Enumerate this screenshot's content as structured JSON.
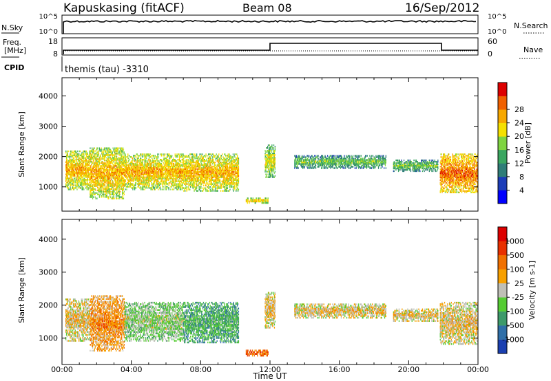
{
  "header": {
    "station": "Kapuskasing (fitACF)",
    "beam": "Beam 08",
    "date": "16/Sep/2012"
  },
  "top_panels": {
    "nsky_label": "N.Sky",
    "nsearch_label": "N.Search",
    "nsky_ticks": [
      "10^5",
      "10^0"
    ],
    "nsearch_ticks": [
      "10^5",
      "10^0"
    ],
    "freq_label": "Freq.",
    "freq_unit": "[MHz]",
    "freq_ticks": [
      "18",
      "8"
    ],
    "nave_label": "Nave",
    "nave_ticks": [
      "60",
      "0"
    ],
    "cpid_label": "CPID",
    "cpid_value": "themis (tau) -3310"
  },
  "chart_data": [
    {
      "type": "heatmap",
      "title": "Power",
      "ylabel": "Slant Range [km]",
      "xlim": [
        0,
        24
      ],
      "ylim": [
        200,
        4600
      ],
      "yticks": [
        1000,
        2000,
        3000,
        4000
      ],
      "colorbar": {
        "label": "Power [dB]",
        "ticks": [
          "4",
          "8",
          "12",
          "16",
          "20",
          "24",
          "28"
        ],
        "colors": [
          "#0000ff",
          "#1c3db8",
          "#2f7d78",
          "#3aa660",
          "#7fd441",
          "#f5e000",
          "#f7a800",
          "#f06000",
          "#dd0000"
        ]
      },
      "echo_regions": [
        {
          "t0": 0.2,
          "t1": 1.6,
          "r0": 900,
          "r1": 2200,
          "level": 4
        },
        {
          "t0": 1.6,
          "t1": 3.6,
          "r0": 600,
          "r1": 2300,
          "level": 4
        },
        {
          "t0": 3.6,
          "t1": 7.0,
          "r0": 900,
          "r1": 2100,
          "level": 4
        },
        {
          "t0": 7.0,
          "t1": 10.2,
          "r0": 850,
          "r1": 2100,
          "level": 4
        },
        {
          "t0": 10.6,
          "t1": 11.9,
          "r0": 450,
          "r1": 650,
          "level": 4
        },
        {
          "t0": 11.7,
          "t1": 12.3,
          "r0": 1300,
          "r1": 2400,
          "level": 3
        },
        {
          "t0": 13.4,
          "t1": 18.7,
          "r0": 1600,
          "r1": 2050,
          "level": 2
        },
        {
          "t0": 19.1,
          "t1": 21.7,
          "r0": 1500,
          "r1": 1900,
          "level": 2
        },
        {
          "t0": 21.8,
          "t1": 24.0,
          "r0": 800,
          "r1": 2100,
          "level": 5
        }
      ]
    },
    {
      "type": "heatmap",
      "title": "Velocity",
      "ylabel": "Slant Range [km]",
      "xlabel": "Time UT",
      "xlim": [
        0,
        24
      ],
      "ylim": [
        200,
        4600
      ],
      "xticks": [
        "00:00",
        "04:00",
        "08:00",
        "12:00",
        "16:00",
        "20:00",
        "00:00"
      ],
      "yticks": [
        1000,
        2000,
        3000,
        4000
      ],
      "colorbar": {
        "label": "Velocity [m s-1]",
        "ticks": [
          "1000",
          "500",
          "100",
          "25",
          "-25",
          "-100",
          "-500",
          "-1000"
        ],
        "colors": [
          "#1a3fb0",
          "#2f6fa8",
          "#3d9a6a",
          "#55cc33",
          "#bfbfb6",
          "#f7a000",
          "#f07000",
          "#e83000",
          "#dd0000"
        ]
      },
      "echo_regions": [
        {
          "t0": 0.2,
          "t1": 1.6,
          "r0": 900,
          "r1": 2200,
          "level": 4
        },
        {
          "t0": 1.6,
          "t1": 3.6,
          "r0": 600,
          "r1": 2300,
          "level": 5
        },
        {
          "t0": 3.6,
          "t1": 7.0,
          "r0": 900,
          "r1": 2100,
          "level": 3
        },
        {
          "t0": 7.0,
          "t1": 10.2,
          "r0": 850,
          "r1": 2100,
          "level": 2
        },
        {
          "t0": 10.6,
          "t1": 11.9,
          "r0": 450,
          "r1": 650,
          "level": 6
        },
        {
          "t0": 11.7,
          "t1": 12.3,
          "r0": 1300,
          "r1": 2400,
          "level": 4
        },
        {
          "t0": 13.4,
          "t1": 18.7,
          "r0": 1600,
          "r1": 2050,
          "level": 4
        },
        {
          "t0": 19.1,
          "t1": 21.7,
          "r0": 1500,
          "r1": 1900,
          "level": 4
        },
        {
          "t0": 21.8,
          "t1": 24.0,
          "r0": 800,
          "r1": 2100,
          "level": 4
        }
      ]
    }
  ]
}
